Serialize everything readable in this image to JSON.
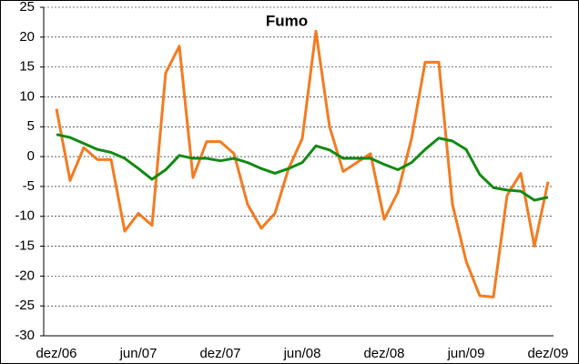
{
  "chart_data": {
    "type": "line",
    "title": "Fumo",
    "categories": [
      "dez/06",
      null,
      null,
      null,
      null,
      null,
      "jun/07",
      null,
      null,
      null,
      null,
      null,
      "dez/07",
      null,
      null,
      null,
      null,
      null,
      "jun/08",
      null,
      null,
      null,
      null,
      null,
      "dez/08",
      null,
      null,
      null,
      null,
      null,
      "jun/09",
      null,
      null,
      null,
      null,
      null,
      "dez/09"
    ],
    "series": [
      {
        "color": "#f47b20",
        "values": [
          8,
          -4,
          1.5,
          -0.5,
          -0.5,
          -12.5,
          -9.5,
          -11.5,
          14,
          18.5,
          -3.5,
          2.5,
          2.5,
          0.5,
          -8,
          -12,
          -9.5,
          -2,
          3,
          21,
          5,
          -2.5,
          -1,
          0.5,
          -10.5,
          -6,
          3,
          15.8,
          15.8,
          -8,
          -17.5,
          -23.3,
          -23.5,
          -6.5,
          -2.8,
          -15,
          -4.2
        ]
      },
      {
        "color": "#138a13",
        "values": [
          3.7,
          3.2,
          2.2,
          1.2,
          0.7,
          -0.3,
          -2,
          -3.8,
          -2.2,
          0.2,
          -0.3,
          -0.3,
          -0.7,
          -0.3,
          -1,
          -2,
          -2.8,
          -2,
          -1,
          1.8,
          1.1,
          -0.3,
          -0.3,
          -0.3,
          -1.3,
          -2.2,
          -1,
          1.2,
          3.1,
          2.6,
          1.2,
          -3,
          -5.2,
          -5.6,
          -5.8,
          -7.3,
          -6.8
        ]
      }
    ],
    "ylim": [
      -30,
      25
    ],
    "yticks": [
      -30,
      -25,
      -20,
      -15,
      -10,
      -5,
      0,
      5,
      10,
      15,
      20,
      25
    ],
    "grid": true
  }
}
